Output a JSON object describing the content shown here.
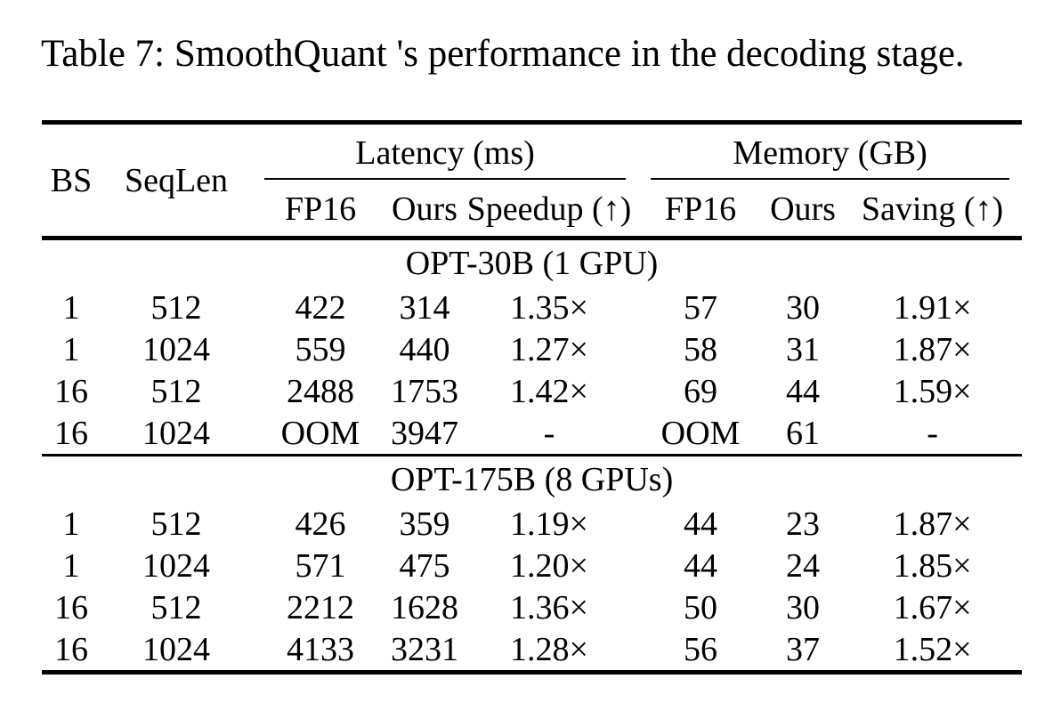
{
  "caption": "Table 7: SmoothQuant 's performance in the decoding stage.",
  "colors": {
    "text": "#000000",
    "background": "#ffffff",
    "rule": "#000000"
  },
  "table": {
    "col_headers": {
      "bs": "BS",
      "seqlen": "SeqLen",
      "latency_group": "Latency (ms)",
      "memory_group": "Memory (GB)",
      "latency_cols": [
        "FP16",
        "Ours",
        "Speedup (↑)"
      ],
      "memory_cols": [
        "FP16",
        "Ours",
        "Saving (↑)"
      ]
    },
    "sections": [
      {
        "label": "OPT-30B (1 GPU)",
        "rows": [
          [
            "1",
            "512",
            "422",
            "314",
            "1.35×",
            "57",
            "30",
            "1.91×"
          ],
          [
            "1",
            "1024",
            "559",
            "440",
            "1.27×",
            "58",
            "31",
            "1.87×"
          ],
          [
            "16",
            "512",
            "2488",
            "1753",
            "1.42×",
            "69",
            "44",
            "1.59×"
          ],
          [
            "16",
            "1024",
            "OOM",
            "3947",
            "-",
            "OOM",
            "61",
            "-"
          ]
        ]
      },
      {
        "label": "OPT-175B (8 GPUs)",
        "rows": [
          [
            "1",
            "512",
            "426",
            "359",
            "1.19×",
            "44",
            "23",
            "1.87×"
          ],
          [
            "1",
            "1024",
            "571",
            "475",
            "1.20×",
            "44",
            "24",
            "1.85×"
          ],
          [
            "16",
            "512",
            "2212",
            "1628",
            "1.36×",
            "50",
            "30",
            "1.67×"
          ],
          [
            "16",
            "1024",
            "4133",
            "3231",
            "1.28×",
            "56",
            "37",
            "1.52×"
          ]
        ]
      }
    ]
  }
}
